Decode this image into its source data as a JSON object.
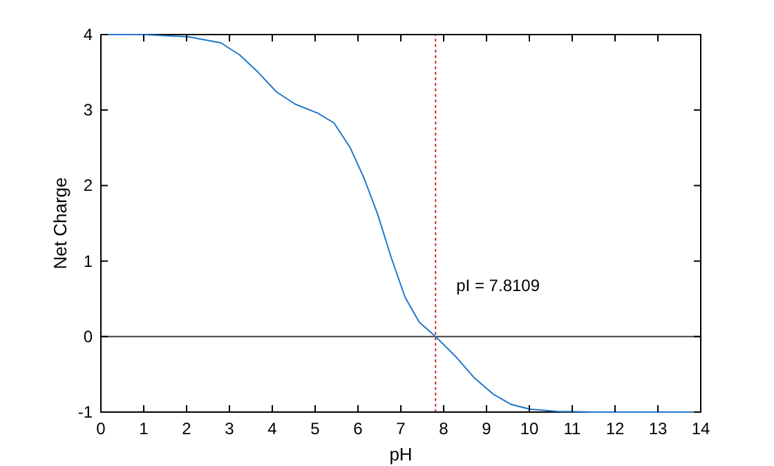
{
  "chart_data": {
    "type": "line",
    "xlabel": "pH",
    "ylabel": "Net Charge",
    "xlim": [
      0,
      14
    ],
    "ylim": [
      -1,
      4
    ],
    "xticks": [
      0,
      1,
      2,
      3,
      4,
      5,
      6,
      7,
      8,
      9,
      10,
      11,
      12,
      13,
      14
    ],
    "yticks": [
      -1,
      0,
      1,
      2,
      3,
      4
    ],
    "grid": false,
    "marker": "none",
    "line_style": "solid",
    "x": [
      0,
      1,
      2.05,
      2.8,
      3.24,
      3.67,
      4.1,
      4.53,
      5.06,
      5.44,
      5.82,
      6.14,
      6.46,
      6.78,
      7.1,
      7.43,
      7.81,
      8.29,
      8.72,
      9.15,
      9.58,
      10,
      10.65,
      11.5,
      12,
      13,
      14
    ],
    "series": [
      {
        "color": "#1f77c9",
        "values": [
          4,
          4,
          3.97,
          3.89,
          3.73,
          3.5,
          3.24,
          3.08,
          2.96,
          2.83,
          2.5,
          2.1,
          1.62,
          1.04,
          0.52,
          0.19,
          0,
          -0.27,
          -0.55,
          -0.76,
          -0.9,
          -0.96,
          -0.99,
          -1,
          -1,
          -1,
          -1
        ]
      }
    ],
    "ref_lines": [
      {
        "axis": "y",
        "value": 0,
        "color": "#000000",
        "line_style": "solid"
      },
      {
        "axis": "x",
        "value": 7.8109,
        "label": "pI = 7.8109",
        "color": "#d62728",
        "line_style": "dotted"
      }
    ]
  }
}
